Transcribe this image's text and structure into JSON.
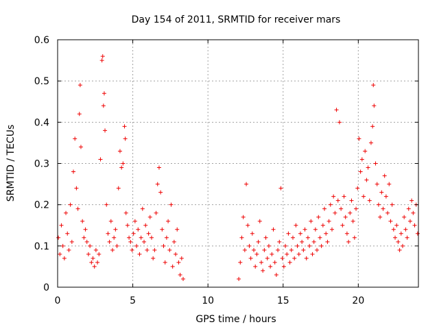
{
  "chart_data": {
    "type": "scatter",
    "title": "Day 154 of 2011, SRMTID for receiver mars",
    "xlabel": "GPS time / hours",
    "ylabel": "SRMTID / TECUs",
    "xlim": [
      0,
      24
    ],
    "ylim": [
      0,
      0.6
    ],
    "grid": true,
    "marker": "+",
    "color": "#ee0000",
    "x_ticks": [
      0,
      5,
      10,
      15,
      20
    ],
    "x_tick_labels": [
      "0",
      "5",
      "10",
      "15",
      "20"
    ],
    "y_ticks": [
      0,
      0.1,
      0.2,
      0.3,
      0.4,
      0.5,
      0.6
    ],
    "y_tick_labels": [
      "0",
      "0.1",
      "0.2",
      "0.3",
      "0.4",
      "0.5",
      "0.6"
    ],
    "series": [
      {
        "name": "SRMTID",
        "x": [
          0.05,
          0.15,
          0.25,
          0.35,
          0.45,
          0.55,
          0.65,
          0.75,
          0.85,
          0.95,
          1.05,
          1.15,
          1.25,
          1.35,
          1.45,
          1.5,
          1.55,
          1.65,
          1.75,
          1.85,
          1.95,
          2.05,
          2.15,
          2.25,
          2.35,
          2.45,
          2.55,
          2.65,
          2.75,
          2.85,
          2.95,
          3.0,
          3.05,
          3.1,
          3.15,
          3.25,
          3.35,
          3.45,
          3.55,
          3.65,
          3.75,
          3.85,
          3.95,
          4.05,
          4.15,
          4.25,
          4.35,
          4.45,
          4.5,
          4.55,
          4.65,
          4.75,
          4.85,
          4.95,
          5.05,
          5.15,
          5.25,
          5.35,
          5.45,
          5.55,
          5.65,
          5.75,
          5.85,
          5.95,
          6.05,
          6.15,
          6.25,
          6.35,
          6.45,
          6.55,
          6.65,
          6.75,
          6.85,
          6.95,
          7.05,
          7.15,
          7.25,
          7.35,
          7.45,
          7.55,
          7.65,
          7.75,
          7.85,
          7.95,
          8.05,
          8.15,
          8.25,
          8.35,
          12.05,
          12.15,
          12.25,
          12.35,
          12.45,
          12.55,
          12.65,
          12.75,
          12.85,
          12.95,
          13.05,
          13.15,
          13.25,
          13.35,
          13.45,
          13.55,
          13.65,
          13.75,
          13.85,
          13.95,
          14.05,
          14.15,
          14.25,
          14.35,
          14.45,
          14.55,
          14.65,
          14.75,
          14.85,
          14.95,
          15.05,
          15.15,
          15.25,
          15.35,
          15.45,
          15.55,
          15.65,
          15.75,
          15.85,
          15.95,
          16.05,
          16.15,
          16.25,
          16.35,
          16.45,
          16.55,
          16.65,
          16.75,
          16.85,
          16.95,
          17.05,
          17.15,
          17.25,
          17.35,
          17.45,
          17.55,
          17.65,
          17.75,
          17.85,
          17.95,
          18.05,
          18.15,
          18.25,
          18.35,
          18.45,
          18.55,
          18.65,
          18.75,
          18.85,
          18.95,
          19.05,
          19.15,
          19.25,
          19.35,
          19.45,
          19.55,
          19.65,
          19.75,
          19.85,
          19.95,
          20.05,
          20.15,
          20.25,
          20.35,
          20.45,
          20.55,
          20.65,
          20.75,
          20.85,
          20.95,
          21.0,
          21.05,
          21.15,
          21.25,
          21.35,
          21.45,
          21.55,
          21.65,
          21.75,
          21.85,
          21.95,
          22.05,
          22.15,
          22.25,
          22.35,
          22.45,
          22.55,
          22.65,
          22.75,
          22.85,
          22.95,
          23.05,
          23.15,
          23.25,
          23.35,
          23.45,
          23.55,
          23.65,
          23.75,
          23.85,
          23.95
        ],
        "y": [
          0.12,
          0.08,
          0.15,
          0.1,
          0.07,
          0.18,
          0.13,
          0.09,
          0.2,
          0.11,
          0.28,
          0.36,
          0.24,
          0.19,
          0.42,
          0.49,
          0.34,
          0.16,
          0.12,
          0.14,
          0.11,
          0.08,
          0.1,
          0.06,
          0.07,
          0.05,
          0.09,
          0.06,
          0.08,
          0.31,
          0.55,
          0.56,
          0.44,
          0.47,
          0.38,
          0.2,
          0.13,
          0.11,
          0.16,
          0.09,
          0.12,
          0.14,
          0.1,
          0.24,
          0.33,
          0.29,
          0.3,
          0.39,
          0.36,
          0.18,
          0.15,
          0.12,
          0.11,
          0.09,
          0.13,
          0.16,
          0.1,
          0.14,
          0.08,
          0.12,
          0.19,
          0.11,
          0.15,
          0.09,
          0.13,
          0.17,
          0.12,
          0.07,
          0.09,
          0.18,
          0.25,
          0.29,
          0.23,
          0.14,
          0.1,
          0.06,
          0.12,
          0.16,
          0.09,
          0.2,
          0.05,
          0.11,
          0.08,
          0.14,
          0.06,
          0.03,
          0.07,
          0.02,
          0.02,
          0.06,
          0.12,
          0.17,
          0.09,
          0.25,
          0.15,
          0.1,
          0.07,
          0.13,
          0.09,
          0.05,
          0.08,
          0.11,
          0.16,
          0.06,
          0.04,
          0.09,
          0.12,
          0.07,
          0.1,
          0.05,
          0.08,
          0.14,
          0.06,
          0.03,
          0.09,
          0.11,
          0.24,
          0.07,
          0.05,
          0.1,
          0.08,
          0.13,
          0.06,
          0.09,
          0.12,
          0.07,
          0.15,
          0.1,
          0.08,
          0.13,
          0.11,
          0.09,
          0.14,
          0.07,
          0.12,
          0.1,
          0.16,
          0.08,
          0.11,
          0.14,
          0.09,
          0.17,
          0.12,
          0.1,
          0.15,
          0.19,
          0.13,
          0.11,
          0.16,
          0.2,
          0.14,
          0.22,
          0.18,
          0.43,
          0.21,
          0.4,
          0.19,
          0.15,
          0.22,
          0.17,
          0.13,
          0.11,
          0.18,
          0.21,
          0.16,
          0.12,
          0.19,
          0.24,
          0.36,
          0.28,
          0.31,
          0.22,
          0.33,
          0.26,
          0.29,
          0.21,
          0.35,
          0.39,
          0.49,
          0.44,
          0.3,
          0.25,
          0.2,
          0.17,
          0.23,
          0.19,
          0.27,
          0.22,
          0.18,
          0.25,
          0.16,
          0.2,
          0.14,
          0.12,
          0.15,
          0.11,
          0.09,
          0.13,
          0.1,
          0.17,
          0.14,
          0.12,
          0.19,
          0.16,
          0.21,
          0.18,
          0.15,
          0.2,
          0.13
        ]
      }
    ]
  }
}
